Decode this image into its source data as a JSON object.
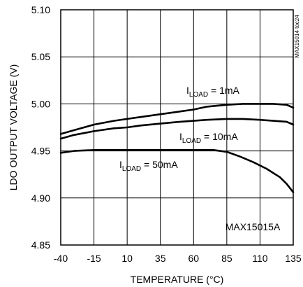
{
  "chart_data": {
    "type": "line",
    "xlabel": "TEMPERATURE (°C)",
    "ylabel": "LDO OUTPUT VOLTAGE (V)",
    "xlim": [
      -40,
      135
    ],
    "ylim": [
      4.85,
      5.1
    ],
    "x_ticks": [
      "-40",
      "-15",
      "10",
      "35",
      "60",
      "85",
      "110",
      "135"
    ],
    "y_ticks": [
      "4.85",
      "4.90",
      "4.95",
      "5.00",
      "5.05",
      "5.10"
    ],
    "grid": true,
    "series": [
      {
        "name": "ILOAD = 1mA",
        "label_main": "I",
        "label_sub": "LOAD",
        "label_rest": " = 1mA",
        "x": [
          -40,
          -30,
          -15,
          0,
          10,
          20,
          35,
          50,
          60,
          70,
          85,
          97,
          110,
          120,
          130,
          135
        ],
        "y": [
          4.968,
          4.972,
          4.978,
          4.982,
          4.984,
          4.986,
          4.989,
          4.992,
          4.994,
          4.997,
          4.999,
          5.0,
          5.0,
          5.0,
          4.999,
          4.996
        ]
      },
      {
        "name": "ILOAD = 10mA",
        "label_main": "I",
        "label_sub": "LOAD",
        "label_rest": " = 10mA",
        "x": [
          -40,
          -30,
          -15,
          0,
          10,
          20,
          35,
          50,
          60,
          70,
          85,
          97,
          110,
          120,
          130,
          135
        ],
        "y": [
          4.963,
          4.967,
          4.971,
          4.974,
          4.975,
          4.977,
          4.979,
          4.981,
          4.982,
          4.983,
          4.984,
          4.984,
          4.983,
          4.982,
          4.981,
          4.978
        ]
      },
      {
        "name": "ILOAD = 50mA",
        "label_main": "I",
        "label_sub": "LOAD",
        "label_rest": " = 50mA",
        "x": [
          -40,
          -30,
          -15,
          0,
          10,
          35,
          60,
          75,
          85,
          95,
          105,
          115,
          125,
          130,
          135
        ],
        "y": [
          4.948,
          4.95,
          4.951,
          4.951,
          4.951,
          4.951,
          4.951,
          4.951,
          4.949,
          4.944,
          4.938,
          4.931,
          4.922,
          4.915,
          4.906
        ]
      }
    ],
    "annotations": {
      "part": "MAX15015A",
      "figure_id": "MAX15014 toc24"
    }
  }
}
